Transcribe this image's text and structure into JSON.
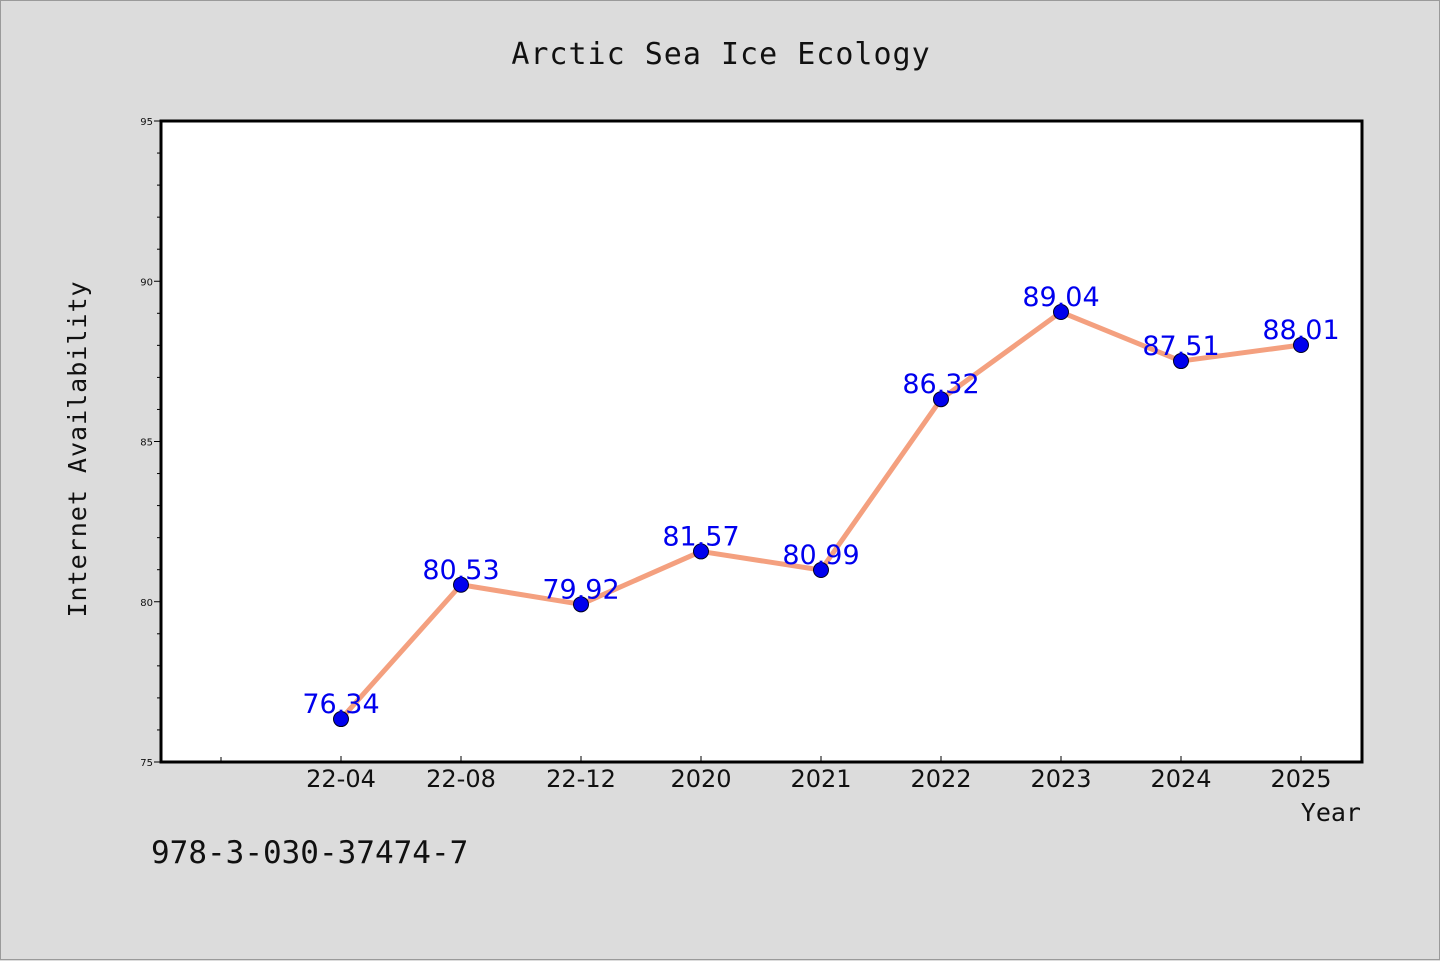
{
  "chart_data": {
    "type": "line",
    "title": "Arctic Sea Ice Ecology",
    "xlabel": "Year",
    "ylabel": "Internet Availability",
    "categories": [
      "22-04",
      "22-08",
      "22-12",
      "2020",
      "2021",
      "2022",
      "2023",
      "2024",
      "2025"
    ],
    "series": [
      {
        "values": [
          76.34,
          80.53,
          79.92,
          81.57,
          80.99,
          86.32,
          89.04,
          87.51,
          88.01
        ],
        "labels": [
          "76.34",
          "80.53",
          "79.92",
          "81.57",
          "80.99",
          "86.32",
          "89.04",
          "87.51",
          "88.01"
        ]
      }
    ],
    "ylim": [
      75,
      95
    ],
    "yticks": [
      75,
      80,
      85,
      90,
      95
    ],
    "ytick_labels": [
      "75",
      "80",
      "85",
      "90",
      "95"
    ],
    "grid": false,
    "legend": "none",
    "colors": {
      "line": "#f4a07f",
      "marker": "#0000ee",
      "data_label": "#0000ee",
      "background": "#dcdcdc",
      "plot_background": "#ffffff"
    }
  },
  "footer": {
    "isbn": "978-3-030-37474-7"
  }
}
